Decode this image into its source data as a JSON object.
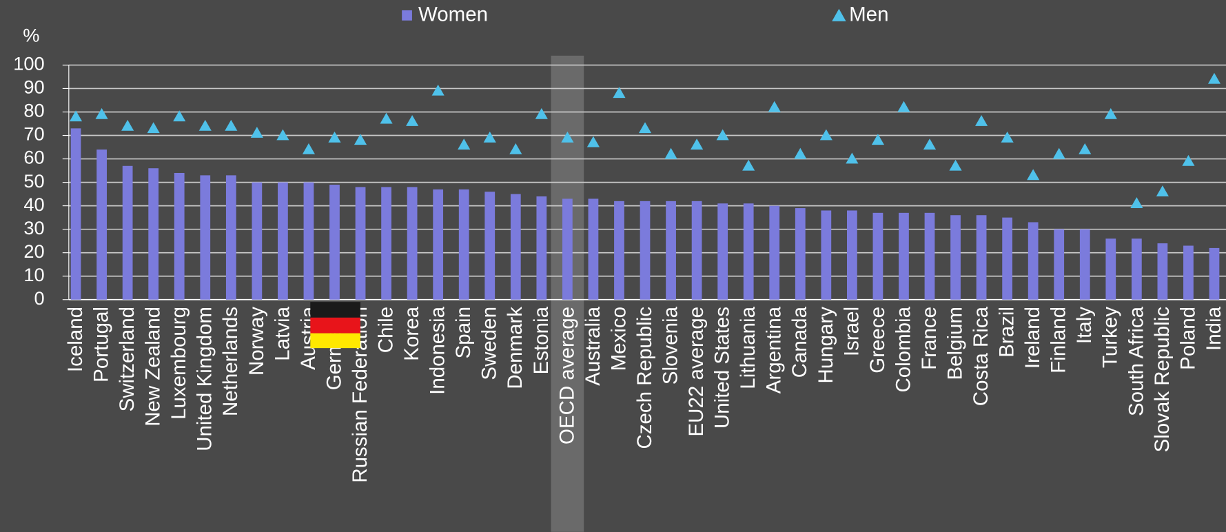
{
  "chart_data": {
    "type": "bar_marker",
    "y_label": "%",
    "categories": [
      "Iceland",
      "Portugal",
      "Switzerland",
      "New Zealand",
      "Luxembourg",
      "United Kingdom",
      "Netherlands",
      "Norway",
      "Latvia",
      "Austria",
      "Germany",
      "Russian Federation",
      "Chile",
      "Korea",
      "Indonesia",
      "Spain",
      "Sweden",
      "Denmark",
      "Estonia",
      "OECD average",
      "Australia",
      "Mexico",
      "Czech Republic",
      "Slovenia",
      "EU22 average",
      "United States",
      "Lithuania",
      "Argentina",
      "Canada",
      "Hungary",
      "Israel",
      "Greece",
      "Colombia",
      "France",
      "Belgium",
      "Costa Rica",
      "Brazil",
      "Ireland",
      "Finland",
      "Italy",
      "Turkey",
      "South Africa",
      "Slovak Republic",
      "Poland",
      "India"
    ],
    "series": [
      {
        "name": "Women",
        "color": "#7b7bdc",
        "marker": "bar",
        "values": [
          73,
          64,
          57,
          56,
          54,
          53,
          53,
          50,
          50,
          50,
          49,
          48,
          48,
          48,
          47,
          47,
          46,
          45,
          44,
          43,
          43,
          42,
          42,
          42,
          42,
          41,
          41,
          40,
          39,
          38,
          38,
          37,
          37,
          37,
          36,
          36,
          35,
          33,
          30,
          30,
          26,
          26,
          24,
          23,
          22
        ]
      },
      {
        "name": "Men",
        "color": "#4fc1ea",
        "marker": "triangle",
        "values": [
          78,
          79,
          74,
          73,
          78,
          74,
          74,
          71,
          70,
          64,
          69,
          68,
          77,
          76,
          89,
          66,
          69,
          64,
          79,
          69,
          67,
          88,
          73,
          62,
          66,
          70,
          57,
          82,
          62,
          70,
          60,
          68,
          82,
          66,
          57,
          76,
          69,
          53,
          62,
          64,
          79,
          41,
          46,
          59,
          94
        ]
      }
    ],
    "highlight": "OECD average",
    "ylim": [
      0,
      100
    ],
    "yticks": [
      0,
      10,
      20,
      30,
      40,
      50,
      60,
      70,
      80,
      90,
      100
    ],
    "grid": true
  }
}
